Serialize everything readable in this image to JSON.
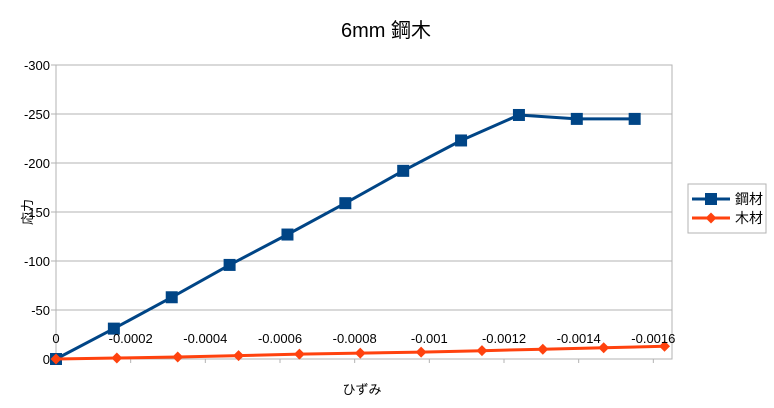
{
  "chart_data": {
    "type": "line",
    "title": "6mm 鋼木",
    "xlabel": "ひずみ",
    "ylabel": "応力",
    "x_ticks": [
      "0",
      "-0.0002",
      "-0.0004",
      "-0.0006",
      "-0.0008",
      "-0.001",
      "-0.0012",
      "-0.0014",
      "-0.0016"
    ],
    "y_ticks": [
      "-300",
      "-250",
      "-200",
      "-150",
      "-100",
      "-50",
      "0"
    ],
    "xlim": [
      0,
      -0.00165
    ],
    "ylim": [
      0,
      -300
    ],
    "x_axis_reversed": true,
    "y_axis_reversed": true,
    "grid": true,
    "legend_position": "right",
    "series": [
      {
        "name": "鋼材",
        "color": "#004586",
        "marker": "square",
        "points": [
          [
            0.0,
            0
          ],
          [
            -0.000155,
            -31
          ],
          [
            -0.00031,
            -63
          ],
          [
            -0.000465,
            -96
          ],
          [
            -0.00062,
            -127
          ],
          [
            -0.000775,
            -159
          ],
          [
            -0.00093,
            -192
          ],
          [
            -0.001085,
            -223
          ],
          [
            -0.00124,
            -249
          ],
          [
            -0.001395,
            -245
          ],
          [
            -0.00155,
            -245
          ]
        ]
      },
      {
        "name": "木材",
        "color": "#ff420e",
        "marker": "diamond",
        "points": [
          [
            0.0,
            0
          ],
          [
            -0.000163,
            -1
          ],
          [
            -0.000326,
            -2
          ],
          [
            -0.000489,
            -3.5
          ],
          [
            -0.000652,
            -5
          ],
          [
            -0.000815,
            -6
          ],
          [
            -0.000978,
            -7
          ],
          [
            -0.001141,
            -8.5
          ],
          [
            -0.001304,
            -10
          ],
          [
            -0.001467,
            -11.5
          ],
          [
            -0.00163,
            -13
          ]
        ]
      }
    ]
  }
}
